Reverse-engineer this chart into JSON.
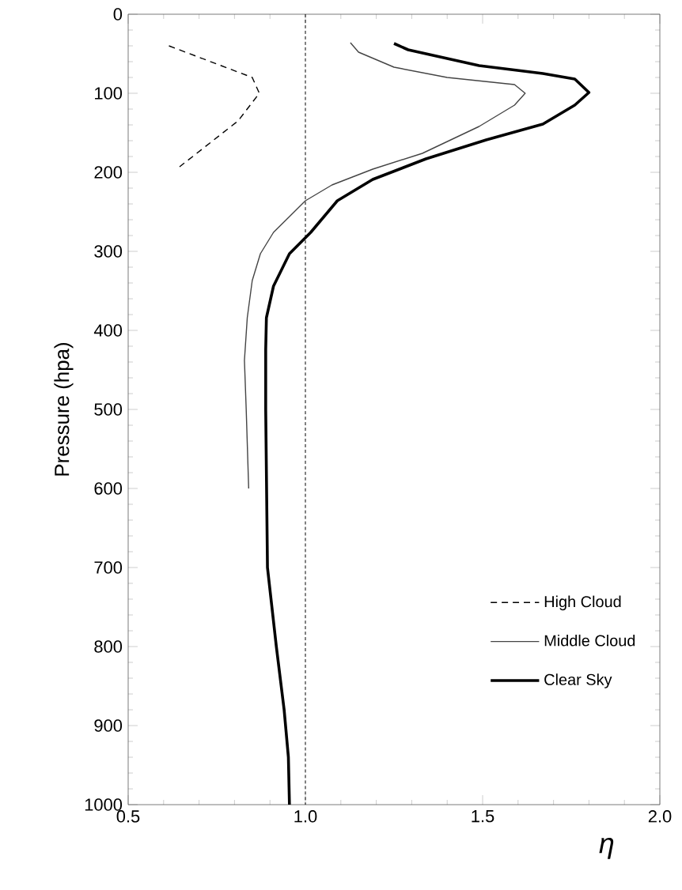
{
  "chart_data": {
    "type": "line",
    "xlabel": "η",
    "ylabel": "Pressure (hpa)",
    "xlim": [
      0.5,
      2.0
    ],
    "ylim": [
      1000,
      0
    ],
    "xticks": [
      0.5,
      {
        "value": 1.0,
        "label": "1.0"
      },
      1.5,
      {
        "value": 2.0,
        "label": "2.0"
      }
    ],
    "yticks": [
      0,
      100,
      200,
      300,
      400,
      500,
      600,
      700,
      800,
      900,
      1000
    ],
    "grid": false,
    "legend": "bottom right",
    "marker": "none",
    "ref_lines": [
      {
        "axis": "x",
        "value": 1.0,
        "line_style": "dashed",
        "color": "#000000"
      }
    ],
    "series": [
      {
        "name": "High Cloud",
        "color": "#000000",
        "line_style": "dashed",
        "x": [
          0.615,
          0.85,
          0.87,
          0.81,
          0.645
        ],
        "values": [
          40,
          80,
          100,
          135,
          193
        ]
      },
      {
        "name": "Middle Cloud",
        "color": "#444444",
        "line_style": "solid",
        "x": [
          1.127,
          1.15,
          1.25,
          1.4,
          1.59,
          1.62,
          1.59,
          1.49,
          1.33,
          1.19,
          1.075,
          1.0,
          0.955,
          0.91,
          0.873,
          0.85,
          0.836,
          0.828,
          0.833,
          0.84
        ],
        "values": [
          36,
          48,
          67,
          80,
          89,
          100,
          115,
          142,
          176,
          196,
          216,
          236,
          256,
          276,
          303,
          337,
          384,
          438,
          500,
          600
        ]
      },
      {
        "name": "Clear Sky",
        "color": "#000000",
        "line_style": "solid",
        "x": [
          1.25,
          1.29,
          1.49,
          1.67,
          1.76,
          1.8,
          1.76,
          1.67,
          1.51,
          1.34,
          1.19,
          1.09,
          1.015,
          0.955,
          0.91,
          0.89,
          0.888,
          0.888,
          0.893,
          0.918,
          0.94,
          0.952,
          0.955
        ],
        "values": [
          37,
          45,
          65,
          75,
          82,
          99,
          115,
          139,
          159,
          183,
          209,
          236,
          276,
          303,
          344,
          384,
          424,
          500,
          700,
          800,
          880,
          940,
          1000
        ]
      }
    ]
  }
}
